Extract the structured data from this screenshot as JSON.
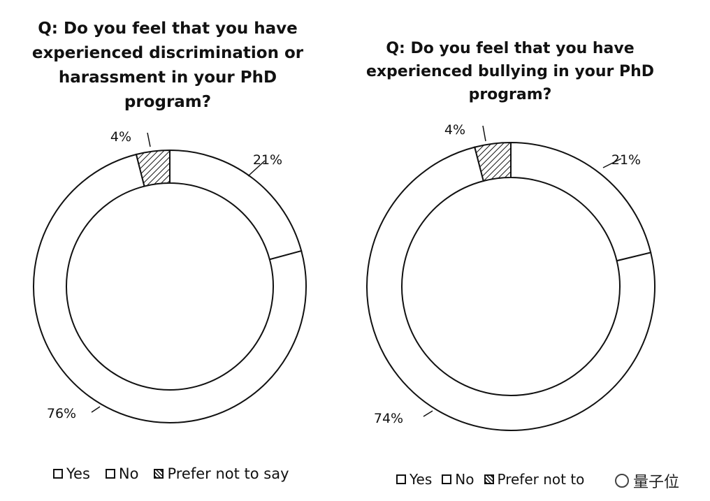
{
  "chart_data": [
    {
      "type": "pie",
      "title": "Q: Do you feel that you have experienced discrimination or harassment in your PhD program?",
      "categories": [
        "Yes",
        "No",
        "Prefer not to say"
      ],
      "values": [
        21,
        76,
        4
      ],
      "labels": [
        "21%",
        "76%",
        "4%"
      ],
      "legend": [
        "Yes",
        "No",
        "Prefer not to say"
      ],
      "legend_position": "bottom"
    },
    {
      "type": "pie",
      "title": "Q: Do you feel that you have experienced bullying in your PhD program?",
      "categories": [
        "Yes",
        "No",
        "Prefer not to say"
      ],
      "values": [
        21,
        74,
        4
      ],
      "labels": [
        "21%",
        "74%",
        "4%"
      ],
      "legend": [
        "Yes",
        "No",
        "Prefer not to"
      ],
      "legend_position": "bottom"
    }
  ],
  "watermark": "量子位"
}
